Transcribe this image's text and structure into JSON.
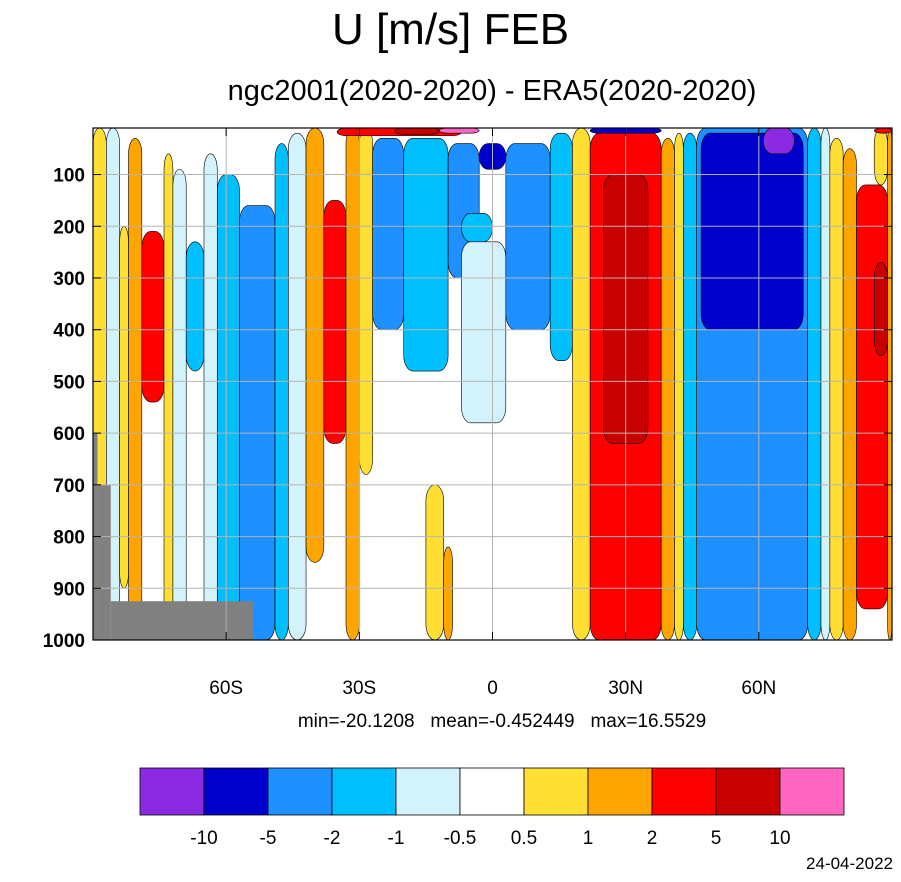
{
  "title": "U [m/s] FEB",
  "subtitle": "ngc2001(2020-2020) - ERA5(2020-2020)",
  "stats": {
    "min": "min=-20.1208",
    "mean": "mean=-0.452449",
    "max": "max=16.5529"
  },
  "date": "24-04-2022",
  "chart_data": {
    "type": "heatmap",
    "title": "U [m/s] FEB",
    "subtitle": "ngc2001(2020-2020) - ERA5(2020-2020)",
    "xlabel": "",
    "ylabel": "",
    "xlim": [
      -90,
      90
    ],
    "ylim": [
      1000,
      10
    ],
    "x_ticks": [
      {
        "value": -60,
        "label": "60S"
      },
      {
        "value": -30,
        "label": "30S"
      },
      {
        "value": 0,
        "label": "0"
      },
      {
        "value": 30,
        "label": "30N"
      },
      {
        "value": 60,
        "label": "60N"
      }
    ],
    "y_ticks": [
      {
        "value": 100,
        "label": "100"
      },
      {
        "value": 200,
        "label": "200"
      },
      {
        "value": 300,
        "label": "300"
      },
      {
        "value": 400,
        "label": "400"
      },
      {
        "value": 500,
        "label": "500"
      },
      {
        "value": 600,
        "label": "600"
      },
      {
        "value": 700,
        "label": "700"
      },
      {
        "value": 800,
        "label": "800"
      },
      {
        "value": 900,
        "label": "900"
      },
      {
        "value": 1000,
        "label": "1000"
      }
    ],
    "grid": true,
    "colorbar": {
      "colors": [
        "#8a2be2",
        "#0000cd",
        "#1e90ff",
        "#00bfff",
        "#d2f2fc",
        "#ffffff",
        "#ffdf33",
        "#ffa500",
        "#ff0000",
        "#c80000",
        "#ff66c2"
      ],
      "labels": [
        "-10",
        "-5",
        "-2",
        "-1",
        "-0.5",
        "0.5",
        "1",
        "2",
        "5",
        "10"
      ]
    },
    "masked_color": "#808080",
    "bands": [
      {
        "lat0": -90,
        "lat1": -87,
        "p_top": 10,
        "p_bot": 1000,
        "level": 6
      },
      {
        "lat0": -87,
        "lat1": -84,
        "p_top": 10,
        "p_bot": 1000,
        "level": 4
      },
      {
        "lat0": -84,
        "lat1": -82,
        "p_top": 200,
        "p_bot": 900,
        "level": 6
      },
      {
        "lat0": -82,
        "lat1": -79,
        "p_top": 30,
        "p_bot": 1000,
        "level": 7
      },
      {
        "lat0": -79,
        "lat1": -74,
        "p_top": 210,
        "p_bot": 540,
        "level": 8
      },
      {
        "lat0": -74,
        "lat1": -72,
        "p_top": 60,
        "p_bot": 1000,
        "level": 6
      },
      {
        "lat0": -72,
        "lat1": -69,
        "p_top": 90,
        "p_bot": 1000,
        "level": 4
      },
      {
        "lat0": -69,
        "lat1": -65,
        "p_top": 230,
        "p_bot": 480,
        "level": 3
      },
      {
        "lat0": -65,
        "lat1": -62,
        "p_top": 60,
        "p_bot": 1000,
        "level": 4
      },
      {
        "lat0": -62,
        "lat1": -57,
        "p_top": 100,
        "p_bot": 1000,
        "level": 3
      },
      {
        "lat0": -57,
        "lat1": -49,
        "p_top": 160,
        "p_bot": 1000,
        "level": 2
      },
      {
        "lat0": -49,
        "lat1": -46,
        "p_top": 40,
        "p_bot": 1000,
        "level": 3
      },
      {
        "lat0": -46,
        "lat1": -42,
        "p_top": 20,
        "p_bot": 1000,
        "level": 4
      },
      {
        "lat0": -42,
        "lat1": -38,
        "p_top": 10,
        "p_bot": 850,
        "level": 7
      },
      {
        "lat0": -38,
        "lat1": -33,
        "p_top": 150,
        "p_bot": 620,
        "level": 8
      },
      {
        "lat0": -33,
        "lat1": -30,
        "p_top": 10,
        "p_bot": 1000,
        "level": 7
      },
      {
        "lat0": -30,
        "lat1": -27,
        "p_top": 10,
        "p_bot": 680,
        "level": 6
      },
      {
        "lat0": -27,
        "lat1": -20,
        "p_top": 30,
        "p_bot": 400,
        "level": 2
      },
      {
        "lat0": -20,
        "lat1": -10,
        "p_top": 30,
        "p_bot": 480,
        "level": 3
      },
      {
        "lat0": -15,
        "lat1": -11,
        "p_top": 700,
        "p_bot": 1000,
        "level": 6
      },
      {
        "lat0": -11,
        "lat1": -9,
        "p_top": 820,
        "p_bot": 1000,
        "level": 7
      },
      {
        "lat0": -10,
        "lat1": -3,
        "p_top": 40,
        "p_bot": 300,
        "level": 2
      },
      {
        "lat0": -3,
        "lat1": 3,
        "p_top": 40,
        "p_bot": 90,
        "level": 1
      },
      {
        "lat0": -7,
        "lat1": 0,
        "p_top": 175,
        "p_bot": 230,
        "level": 3
      },
      {
        "lat0": -7,
        "lat1": 3,
        "p_top": 230,
        "p_bot": 580,
        "level": 4
      },
      {
        "lat0": 3,
        "lat1": 13,
        "p_top": 40,
        "p_bot": 400,
        "level": 2
      },
      {
        "lat0": 13,
        "lat1": 18,
        "p_top": 20,
        "p_bot": 460,
        "level": 3
      },
      {
        "lat0": 18,
        "lat1": 22,
        "p_top": 10,
        "p_bot": 1000,
        "level": 6
      },
      {
        "lat0": 22,
        "lat1": 38,
        "p_top": 20,
        "p_bot": 1000,
        "level": 8
      },
      {
        "lat0": 25,
        "lat1": 35,
        "p_top": 100,
        "p_bot": 620,
        "level": 9
      },
      {
        "lat0": 38,
        "lat1": 41,
        "p_top": 30,
        "p_bot": 1000,
        "level": 7
      },
      {
        "lat0": 41,
        "lat1": 43,
        "p_top": 20,
        "p_bot": 1000,
        "level": 6
      },
      {
        "lat0": 43,
        "lat1": 46,
        "p_top": 20,
        "p_bot": 1000,
        "level": 3
      },
      {
        "lat0": 46,
        "lat1": 71,
        "p_top": 10,
        "p_bot": 1000,
        "level": 2
      },
      {
        "lat0": 47,
        "lat1": 70,
        "p_top": 20,
        "p_bot": 400,
        "level": 1
      },
      {
        "lat0": 61,
        "lat1": 68,
        "p_top": 10,
        "p_bot": 60,
        "level": 0
      },
      {
        "lat0": 71,
        "lat1": 74,
        "p_top": 10,
        "p_bot": 1000,
        "level": 3
      },
      {
        "lat0": 74,
        "lat1": 76,
        "p_top": 10,
        "p_bot": 1000,
        "level": 4
      },
      {
        "lat0": 76,
        "lat1": 79,
        "p_top": 30,
        "p_bot": 1000,
        "level": 6
      },
      {
        "lat0": 79,
        "lat1": 82,
        "p_top": 50,
        "p_bot": 1000,
        "level": 7
      },
      {
        "lat0": 82,
        "lat1": 89,
        "p_top": 120,
        "p_bot": 940,
        "level": 8
      },
      {
        "lat0": 86,
        "lat1": 89,
        "p_top": 270,
        "p_bot": 450,
        "level": 9
      },
      {
        "lat0": 86,
        "lat1": 89,
        "p_top": 10,
        "p_bot": 120,
        "level": 6
      },
      {
        "lat0": 89,
        "lat1": 90,
        "p_top": 10,
        "p_bot": 1000,
        "level": 7
      },
      {
        "lat0": -35,
        "lat1": -7,
        "p_top": 10,
        "p_bot": 25,
        "level": 8
      },
      {
        "lat0": -22,
        "lat1": -12,
        "p_top": 10,
        "p_bot": 22,
        "level": 9
      },
      {
        "lat0": -12,
        "lat1": -3,
        "p_top": 10,
        "p_bot": 20,
        "level": 10
      },
      {
        "lat0": 22,
        "lat1": 38,
        "p_top": 10,
        "p_bot": 20,
        "level": 1
      },
      {
        "lat0": 86,
        "lat1": 90,
        "p_top": 10,
        "p_bot": 20,
        "level": 8
      }
    ],
    "masked": [
      {
        "lat0": -90,
        "lat1": -89,
        "p_top": 600,
        "p_bot": 1000
      },
      {
        "lat0": -89,
        "lat1": -86,
        "p_top": 700,
        "p_bot": 1000
      },
      {
        "lat0": -86,
        "lat1": -54,
        "p_top": 925,
        "p_bot": 1000
      }
    ]
  }
}
